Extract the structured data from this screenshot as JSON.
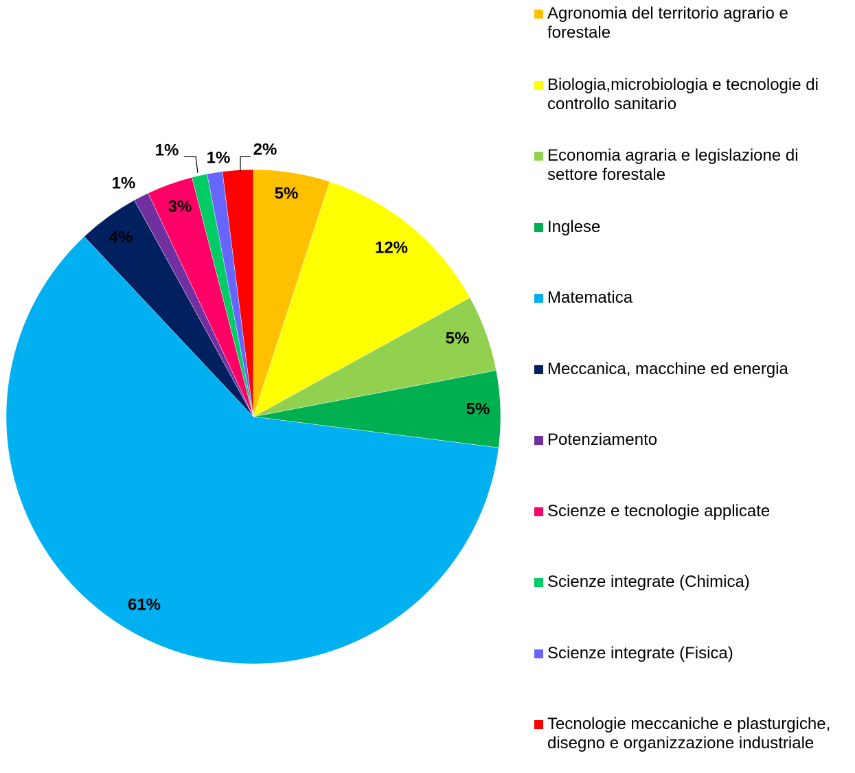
{
  "chart_data": {
    "type": "pie",
    "categories": [
      "Agronomia del territorio agrario e forestale",
      "Biologia,microbiologia e tecnologie di controllo sanitario",
      "Economia agraria e legislazione di settore forestale",
      "Inglese",
      "Matematica",
      "Meccanica, macchine ed energia",
      "Potenziamento",
      "Scienze e tecnologie applicate",
      "Scienze integrate (Chimica)",
      "Scienze integrate (Fisica)",
      "Tecnologie meccaniche e plasturgiche, disegno e organizzazione industriale"
    ],
    "values": [
      5,
      12,
      5,
      5,
      61,
      4,
      1,
      3,
      1,
      1,
      2
    ],
    "value_labels": [
      "5%",
      "12%",
      "5%",
      "5%",
      "61%",
      "4%",
      "1%",
      "3%",
      "1%",
      "1%",
      "2%"
    ],
    "colors": [
      "#FFC000",
      "#FFFF00",
      "#92D050",
      "#00B050",
      "#00B0F0",
      "#002060",
      "#7030A0",
      "#FF0066",
      "#00CC66",
      "#6666FF",
      "#FF0000"
    ],
    "legend": "right"
  }
}
